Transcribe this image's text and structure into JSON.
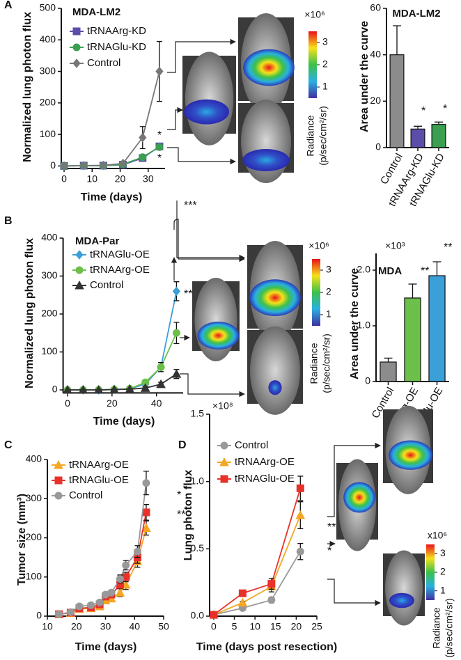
{
  "panels": [
    "A",
    "B",
    "C",
    "D"
  ],
  "chart_data": [
    {
      "type": "line",
      "title": "MDA-LM2",
      "xlabel": "Time (days)",
      "ylabel": "Normalized lung photon flux",
      "x": [
        0,
        7,
        14,
        21,
        28,
        34
      ],
      "xlim": [
        -1,
        36
      ],
      "ylim": [
        -8,
        500
      ],
      "xticks": [
        0,
        10,
        20,
        30
      ],
      "yticks": [
        0,
        100,
        200,
        300,
        400,
        500
      ],
      "series": [
        {
          "name": "tRNAArg-KD",
          "color": "#5b4ea8",
          "marker": "square",
          "values": [
            0,
            1,
            1,
            4,
            25,
            62
          ],
          "errors": [
            1,
            1,
            1,
            2,
            5,
            8
          ]
        },
        {
          "name": "tRNAGlu-KD",
          "color": "#3aa050",
          "marker": "circle",
          "values": [
            0,
            1,
            1,
            5,
            28,
            60
          ],
          "errors": [
            1,
            1,
            1,
            2,
            5,
            8
          ]
        },
        {
          "name": "Control",
          "color": "#777777",
          "marker": "diamond",
          "values": [
            0,
            1,
            2,
            8,
            90,
            300
          ],
          "errors": [
            1,
            1,
            2,
            4,
            35,
            95
          ]
        }
      ],
      "annotations": [
        "*",
        "*"
      ]
    },
    {
      "type": "bar",
      "title": "MDA-LM2",
      "ylabel": "Area under the curve",
      "categories": [
        "Control",
        "tRNAArg-KD",
        "tRNAGlu-KD"
      ],
      "values": [
        40,
        8,
        10
      ],
      "errors": [
        12.5,
        1.2,
        1
      ],
      "colors": [
        "#8c8c8c",
        "#5b4ea8",
        "#3aa050"
      ],
      "ylim": [
        0,
        60
      ],
      "yticks": [
        0,
        20,
        40,
        60
      ],
      "annotations": [
        "*",
        "*"
      ]
    },
    {
      "type": "line",
      "title": "MDA-Par",
      "xlabel": "Time (days)",
      "ylabel": "Normalized lung photon flux",
      "x": [
        0,
        7,
        14,
        21,
        28,
        35,
        42,
        49
      ],
      "xlim": [
        -2,
        52
      ],
      "ylim": [
        -8,
        400
      ],
      "xticks": [
        0,
        20,
        40
      ],
      "yticks": [
        0,
        100,
        200,
        300,
        400
      ],
      "series": [
        {
          "name": "tRNAGlu-OE",
          "color": "#3b9fd8",
          "marker": "diamond",
          "values": [
            0,
            0,
            0,
            1,
            3,
            15,
            60,
            260
          ],
          "errors": [
            1,
            1,
            1,
            1,
            2,
            5,
            12,
            25
          ]
        },
        {
          "name": "tRNAArg-OE",
          "color": "#6cc04a",
          "marker": "circle",
          "values": [
            0,
            0,
            0,
            1,
            3,
            20,
            60,
            150
          ],
          "errors": [
            1,
            1,
            1,
            1,
            2,
            6,
            12,
            28
          ]
        },
        {
          "name": "Control",
          "color": "#333333",
          "marker": "triangle",
          "values": [
            0,
            0,
            0,
            1,
            2,
            5,
            15,
            42
          ],
          "errors": [
            1,
            1,
            1,
            1,
            1,
            3,
            5,
            12
          ]
        }
      ],
      "annotations": [
        "***",
        "**"
      ]
    },
    {
      "type": "bar",
      "title": "MDA",
      "unit_label": "×10³",
      "ylabel": "Area under the curve",
      "categories": [
        "Control",
        "tRNAArg-OE",
        "tRNAGlu-OE"
      ],
      "values": [
        0.35,
        1.5,
        1.9
      ],
      "errors": [
        0.07,
        0.25,
        0.25
      ],
      "colors": [
        "#8c8c8c",
        "#6cc04a",
        "#3b9fd8"
      ],
      "ylim": [
        0,
        2.3
      ],
      "yticks": [
        0,
        {
          "value": 1,
          "label": "1.0"
        },
        {
          "value": 2,
          "label": "2.0"
        }
      ],
      "annotations": [
        "**",
        "**"
      ]
    },
    {
      "type": "line",
      "xlabel": "Time (days)",
      "ylabel": "Tumor size (mm³)",
      "x": [
        14,
        18,
        21,
        25,
        28,
        30,
        32,
        35,
        37,
        41,
        44
      ],
      "xlim": [
        10,
        50
      ],
      "ylim": [
        0,
        400
      ],
      "xticks": [
        10,
        20,
        30,
        40,
        50
      ],
      "yticks": [
        0,
        100,
        200,
        300,
        400
      ],
      "series": [
        {
          "name": "tRNAArg-OE",
          "color": "#f5a623",
          "marker": "triangle",
          "values": [
            5,
            8,
            18,
            20,
            25,
            40,
            45,
            60,
            80,
            140,
            225
          ],
          "errors": [
            2,
            2,
            3,
            3,
            4,
            6,
            6,
            10,
            12,
            15,
            18
          ]
        },
        {
          "name": "tRNAGlu-OE",
          "color": "#e8312a",
          "marker": "square",
          "values": [
            5,
            9,
            20,
            22,
            30,
            50,
            55,
            80,
            100,
            150,
            265
          ],
          "errors": [
            2,
            2,
            3,
            3,
            4,
            6,
            6,
            10,
            12,
            15,
            20
          ]
        },
        {
          "name": "Control",
          "color": "#999999",
          "marker": "circle",
          "values": [
            5,
            10,
            25,
            28,
            35,
            55,
            60,
            95,
            130,
            165,
            340
          ],
          "errors": [
            2,
            2,
            3,
            3,
            4,
            6,
            6,
            10,
            12,
            15,
            30
          ]
        }
      ],
      "annotations": [
        "*",
        "**"
      ]
    },
    {
      "type": "line",
      "xlabel": "Time (days post resection)",
      "ylabel": "Lung photon flux",
      "unit_label": "×10⁸",
      "x": [
        0,
        7,
        14,
        21
      ],
      "xlim": [
        -1,
        25
      ],
      "ylim": [
        0,
        1.5
      ],
      "xticks": [
        0,
        5,
        10,
        15,
        20,
        25
      ],
      "yticks": [
        {
          "value": 0,
          "label": "0.0"
        },
        0.5,
        {
          "value": 1,
          "label": "1.0"
        },
        1.5
      ],
      "series": [
        {
          "name": "Control",
          "color": "#999999",
          "marker": "circle",
          "values": [
            0.01,
            0.06,
            0.12,
            0.48
          ],
          "errors": [
            0.01,
            0.01,
            0.02,
            0.06
          ]
        },
        {
          "name": "tRNAArg-OE",
          "color": "#f5a623",
          "marker": "triangle",
          "values": [
            0.01,
            0.1,
            0.22,
            0.75
          ],
          "errors": [
            0.01,
            0.01,
            0.04,
            0.1
          ]
        },
        {
          "name": "tRNAGlu-OE",
          "color": "#e8312a",
          "marker": "square",
          "values": [
            0.01,
            0.17,
            0.24,
            0.95
          ],
          "errors": [
            0.01,
            0.01,
            0.04,
            0.09
          ]
        }
      ],
      "annotations": [
        "**",
        "*"
      ]
    }
  ],
  "colorbars": [
    {
      "unit_label": "×10⁶",
      "ticks": [
        1,
        2,
        3
      ],
      "lim": [
        0.5,
        3.5
      ],
      "label": [
        "Radiance",
        "(p/sec/cm²/sr)"
      ]
    },
    {
      "unit_label": "×10⁶",
      "ticks": [
        1,
        2,
        3
      ],
      "lim": [
        0.5,
        3.5
      ],
      "label": [
        "Radiance",
        "(p/sec/cm²/sr)"
      ]
    },
    {
      "unit_label": "x10⁶",
      "ticks": [
        1,
        2,
        3
      ],
      "lim": [
        0.5,
        3.5
      ],
      "label": [
        "Radiance",
        "(p/sec/cm²/sr)"
      ]
    }
  ]
}
